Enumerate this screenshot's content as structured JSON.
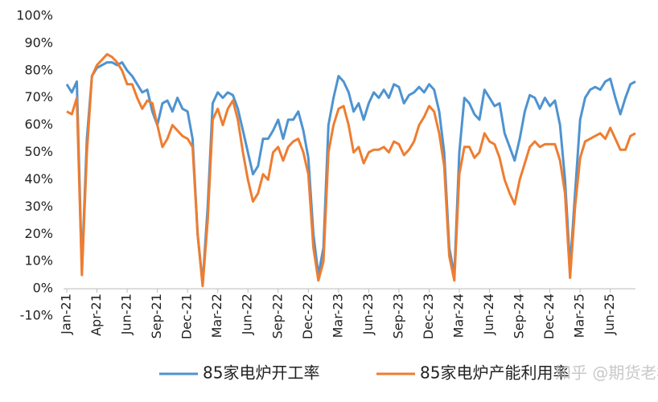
{
  "chart_data": {
    "type": "line",
    "categories": [
      "Jan-21",
      null,
      null,
      null,
      null,
      null,
      "Apr-21",
      null,
      null,
      null,
      null,
      null,
      "Jun-21",
      null,
      null,
      null,
      null,
      null,
      "Sep-21",
      null,
      null,
      null,
      null,
      null,
      "Dec-21",
      null,
      null,
      null,
      null,
      null,
      "Mar-22",
      null,
      null,
      null,
      null,
      null,
      "Jun-22",
      null,
      null,
      null,
      null,
      null,
      "Sep-22",
      null,
      null,
      null,
      null,
      null,
      "Dec-22",
      null,
      null,
      null,
      null,
      null,
      "Mar-23",
      null,
      null,
      null,
      null,
      null,
      "Jun-23",
      null,
      null,
      null,
      null,
      null,
      "Sep-23",
      null,
      null,
      null,
      null,
      null,
      "Dec-23",
      null,
      null,
      null,
      null,
      null,
      "Mar-24",
      null,
      null,
      null,
      null,
      null,
      "Jun-24",
      null,
      null,
      null,
      null,
      null,
      "Sep-24",
      null,
      null,
      null,
      null,
      null,
      "Dec-24",
      null,
      null,
      null,
      null,
      null,
      "Mar-25",
      null,
      null,
      null,
      null,
      null,
      "Jun-25",
      null,
      null,
      null,
      null,
      null
    ],
    "series": [
      {
        "name": "85家电炉开工率",
        "color": "#4e93d0",
        "values": [
          75,
          72,
          76,
          7,
          55,
          78,
          81,
          82,
          83,
          83,
          82,
          83,
          80,
          78,
          75,
          72,
          73,
          65,
          60,
          68,
          69,
          65,
          70,
          66,
          65,
          55,
          20,
          2,
          30,
          68,
          72,
          70,
          72,
          71,
          66,
          58,
          50,
          42,
          45,
          55,
          55,
          58,
          62,
          55,
          62,
          62,
          65,
          58,
          48,
          20,
          5,
          15,
          60,
          70,
          78,
          76,
          72,
          65,
          68,
          62,
          68,
          72,
          70,
          73,
          70,
          75,
          74,
          68,
          71,
          72,
          74,
          72,
          75,
          73,
          65,
          50,
          15,
          5,
          50,
          70,
          68,
          64,
          62,
          73,
          70,
          67,
          68,
          57,
          52,
          47,
          55,
          65,
          71,
          70,
          66,
          70,
          67,
          69,
          60,
          40,
          8,
          35,
          62,
          70,
          73,
          74,
          73,
          76,
          77,
          70,
          64,
          70,
          75,
          76
        ]
      },
      {
        "name": "85家电炉产能利用率",
        "color": "#ee7d31",
        "values": [
          65,
          64,
          70,
          5,
          50,
          78,
          82,
          84,
          86,
          85,
          83,
          80,
          75,
          75,
          70,
          66,
          69,
          68,
          60,
          52,
          55,
          60,
          58,
          56,
          55,
          52,
          20,
          1,
          25,
          62,
          66,
          60,
          66,
          69,
          62,
          50,
          40,
          32,
          35,
          42,
          40,
          50,
          52,
          47,
          52,
          54,
          55,
          50,
          42,
          15,
          3,
          10,
          50,
          60,
          66,
          67,
          60,
          50,
          52,
          46,
          50,
          51,
          51,
          52,
          50,
          54,
          53,
          49,
          51,
          54,
          60,
          63,
          67,
          65,
          57,
          45,
          12,
          3,
          42,
          52,
          52,
          48,
          50,
          57,
          54,
          53,
          48,
          40,
          35,
          31,
          40,
          46,
          52,
          54,
          52,
          53,
          53,
          53,
          47,
          35,
          4,
          30,
          48,
          54,
          55,
          56,
          57,
          55,
          59,
          55,
          51,
          51,
          56,
          57
        ]
      }
    ],
    "ylim": [
      -10,
      100
    ],
    "yticks": [
      {
        "value": -10,
        "label": "-10%"
      },
      {
        "value": 0,
        "label": "0%"
      },
      {
        "value": 10,
        "label": "10%"
      },
      {
        "value": 20,
        "label": "20%"
      },
      {
        "value": 30,
        "label": "30%"
      },
      {
        "value": 40,
        "label": "40%"
      },
      {
        "value": 50,
        "label": "50%"
      },
      {
        "value": 60,
        "label": "60%"
      },
      {
        "value": 70,
        "label": "70%"
      },
      {
        "value": 80,
        "label": "80%"
      },
      {
        "value": 90,
        "label": "90%"
      },
      {
        "value": 100,
        "label": "100%"
      }
    ],
    "grid": false,
    "legend": "bottom",
    "watermark": "知乎 @期货老杨"
  }
}
